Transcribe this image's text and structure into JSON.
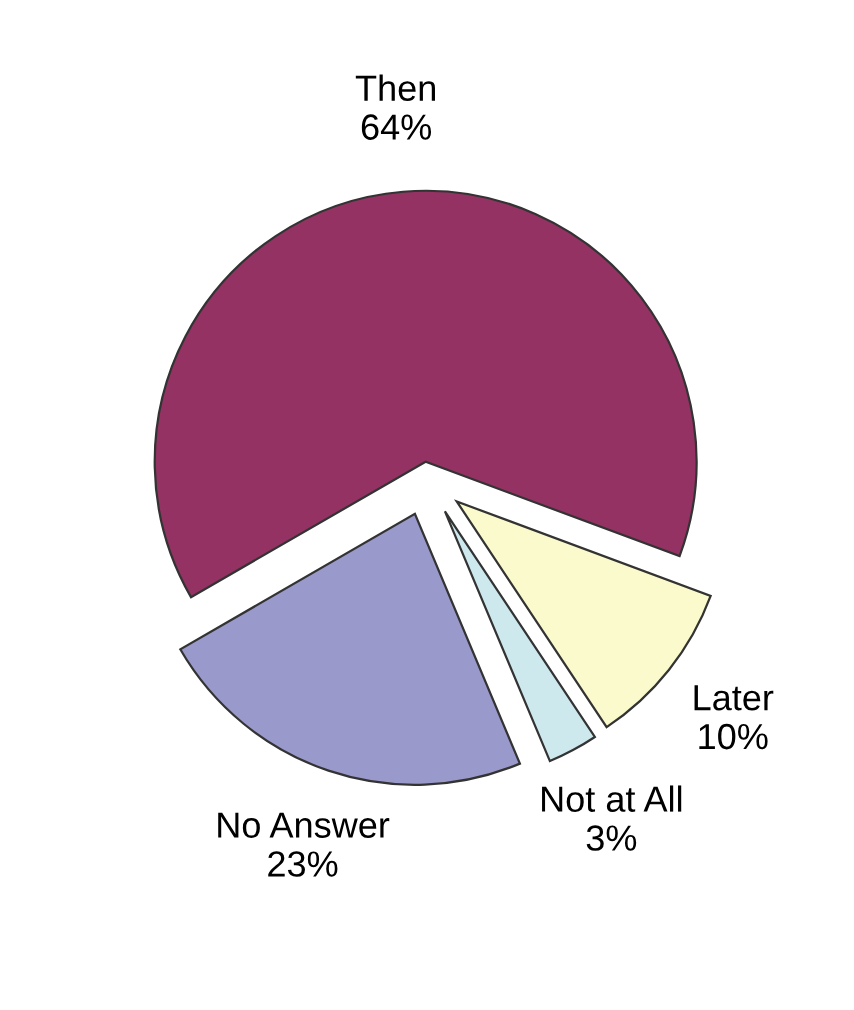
{
  "chart_data": {
    "type": "pie",
    "categories": [
      "Then",
      "Later",
      "Not at All",
      "No Answer"
    ],
    "values": [
      64,
      10,
      3,
      23
    ],
    "value_labels": [
      "64%",
      "10%",
      "3%",
      "23%"
    ],
    "colors": [
      "#943263",
      "#fafacc",
      "#cde9ee",
      "#9999cc"
    ]
  }
}
